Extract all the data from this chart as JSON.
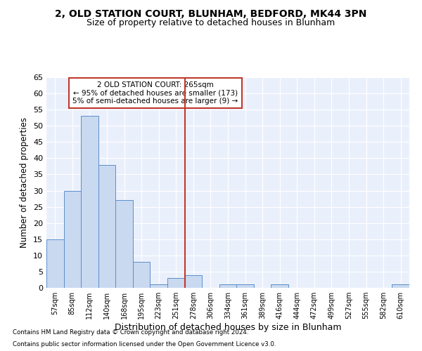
{
  "title1": "2, OLD STATION COURT, BLUNHAM, BEDFORD, MK44 3PN",
  "title2": "Size of property relative to detached houses in Blunham",
  "xlabel": "Distribution of detached houses by size in Blunham",
  "ylabel": "Number of detached properties",
  "categories": [
    "57sqm",
    "85sqm",
    "112sqm",
    "140sqm",
    "168sqm",
    "195sqm",
    "223sqm",
    "251sqm",
    "278sqm",
    "306sqm",
    "334sqm",
    "361sqm",
    "389sqm",
    "416sqm",
    "444sqm",
    "472sqm",
    "499sqm",
    "527sqm",
    "555sqm",
    "582sqm",
    "610sqm"
  ],
  "values": [
    15,
    30,
    53,
    38,
    27,
    8,
    1,
    3,
    4,
    0,
    1,
    1,
    0,
    1,
    0,
    0,
    0,
    0,
    0,
    0,
    1
  ],
  "bar_color": "#c9d9f0",
  "bar_edge_color": "#5b8fc9",
  "vline_x": 7.5,
  "vline_color": "#c0392b",
  "ylim": [
    0,
    65
  ],
  "yticks": [
    0,
    5,
    10,
    15,
    20,
    25,
    30,
    35,
    40,
    45,
    50,
    55,
    60,
    65
  ],
  "annotation_title": "2 OLD STATION COURT: 265sqm",
  "annotation_line1": "← 95% of detached houses are smaller (173)",
  "annotation_line2": "5% of semi-detached houses are larger (9) →",
  "annotation_box_color": "#c0392b",
  "footnote1": "Contains HM Land Registry data © Crown copyright and database right 2024.",
  "footnote2": "Contains public sector information licensed under the Open Government Licence v3.0.",
  "bg_color": "#eaf0fb",
  "grid_color": "#ffffff",
  "title1_fontsize": 10,
  "title2_fontsize": 9,
  "xlabel_fontsize": 9,
  "ylabel_fontsize": 8.5
}
